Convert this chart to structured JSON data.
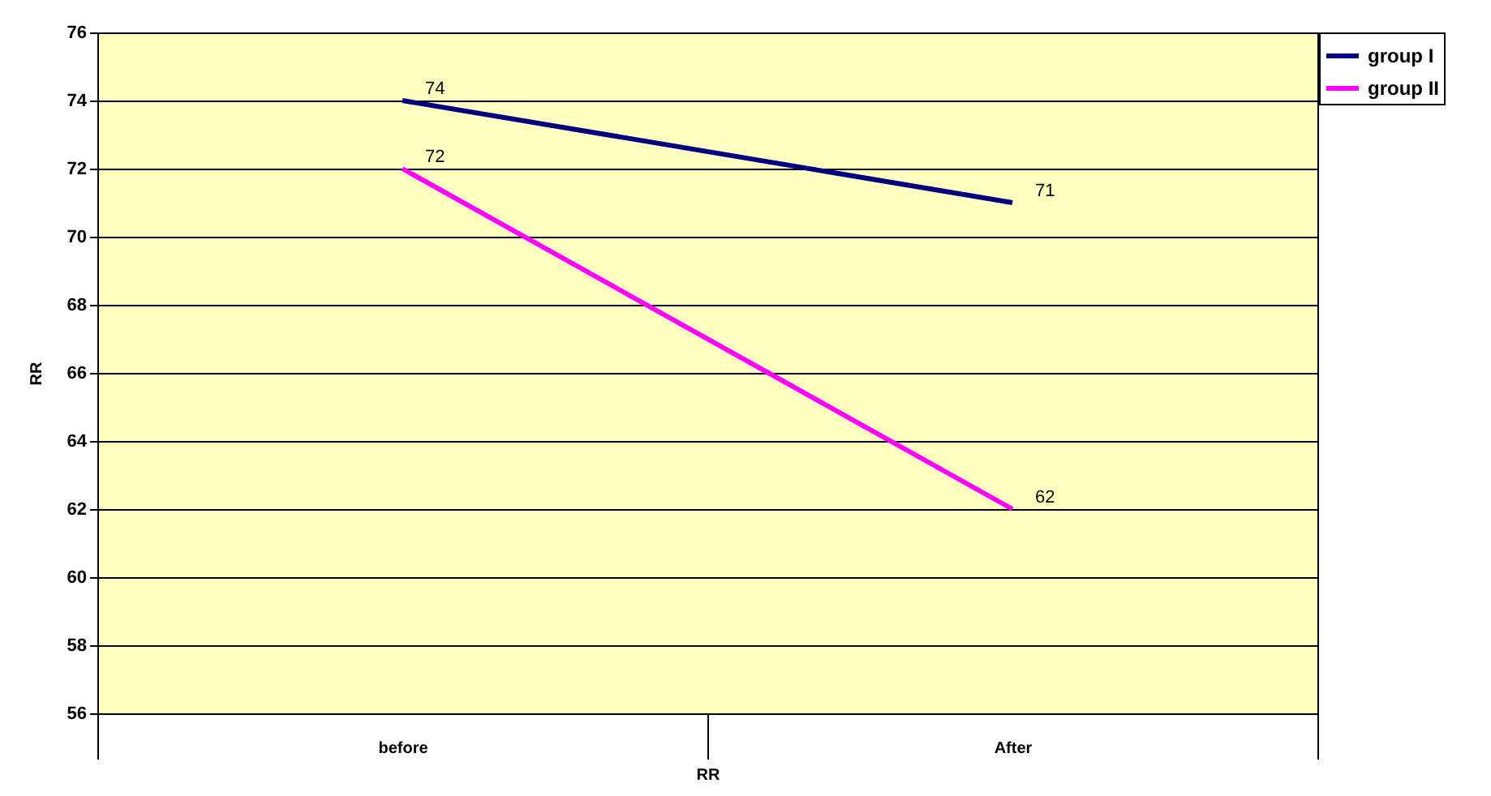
{
  "chart_data": {
    "type": "line",
    "xlabel": "RR",
    "ylabel": "RR",
    "categories": [
      "before",
      "After"
    ],
    "series": [
      {
        "name": "group I",
        "color": "#000080",
        "values": [
          74,
          71
        ]
      },
      {
        "name": "group II",
        "color": "#ff00ff",
        "values": [
          72,
          62
        ]
      }
    ],
    "ylim": [
      56,
      76
    ],
    "yticks": [
      56,
      58,
      60,
      62,
      64,
      66,
      68,
      70,
      72,
      74,
      76
    ],
    "grid": "y",
    "legend": "right",
    "data_labels": true,
    "marker": "none"
  }
}
